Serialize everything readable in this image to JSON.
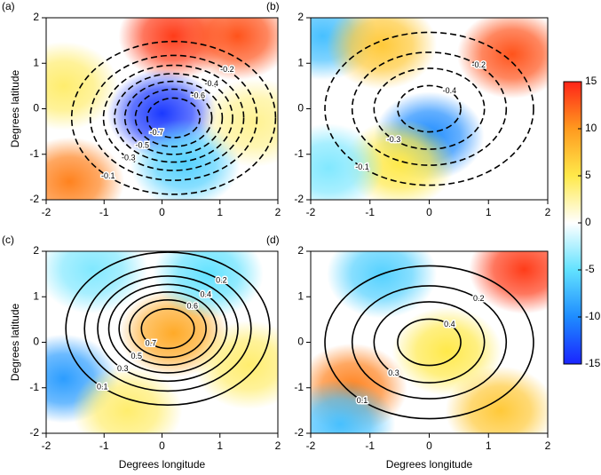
{
  "chart_data": [
    {
      "type": "contour",
      "title": "(a)",
      "ylabel": "Degrees latitude",
      "xlim": [
        -2,
        2
      ],
      "ylim": [
        -2,
        2
      ],
      "xticks": [
        -2,
        -1,
        0,
        1,
        2
      ],
      "yticks": [
        -2,
        -1,
        0,
        1,
        2
      ],
      "contour_center": [
        0.2,
        -0.2
      ],
      "contour_levels": [
        -0.1,
        -0.2,
        -0.3,
        -0.4,
        -0.5,
        -0.6,
        -0.7
      ],
      "hotspots": [
        {
          "x": 0.2,
          "y": 1.6,
          "value": 14
        },
        {
          "x": 1.3,
          "y": 1.6,
          "value": 13
        },
        {
          "x": -1.6,
          "y": -1.6,
          "value": 11
        },
        {
          "x": 0,
          "y": -0.1,
          "value": -14
        },
        {
          "x": 0.4,
          "y": -1.2,
          "value": -6
        },
        {
          "x": -1.7,
          "y": 0.5,
          "value": 4
        },
        {
          "x": 1.6,
          "y": -0.3,
          "value": 3
        }
      ]
    },
    {
      "type": "contour",
      "title": "(b)",
      "xlim": [
        -2,
        2
      ],
      "ylim": [
        -2,
        2
      ],
      "xticks": [
        -2,
        -1,
        0,
        1,
        2
      ],
      "yticks": [
        -2,
        -1,
        0,
        1,
        2
      ],
      "contour_center": [
        0,
        0
      ],
      "contour_levels": [
        -0.1,
        -0.2,
        -0.3,
        -0.4
      ],
      "hotspots": [
        {
          "x": 1.4,
          "y": 1.2,
          "value": 13
        },
        {
          "x": -1.8,
          "y": 1.6,
          "value": -7
        },
        {
          "x": 0,
          "y": -0.6,
          "value": -10
        },
        {
          "x": -0.8,
          "y": 1.4,
          "value": 7
        },
        {
          "x": -0.5,
          "y": -1.2,
          "value": 5
        },
        {
          "x": -1.7,
          "y": -1.3,
          "value": -4
        }
      ]
    },
    {
      "type": "contour",
      "title": "(c)",
      "ylabel": "Degrees latitude",
      "xlabel": "Degrees longitude",
      "xlim": [
        -2,
        2
      ],
      "ylim": [
        -2,
        2
      ],
      "xticks": [
        -2,
        -1,
        0,
        1,
        2
      ],
      "yticks": [
        -2,
        -1,
        0,
        1,
        2
      ],
      "contour_center": [
        0.1,
        0.3
      ],
      "contour_levels": [
        0.1,
        0.2,
        0.3,
        0.4,
        0.5,
        0.6,
        0.7
      ],
      "hotspots": [
        {
          "x": 0.2,
          "y": 0.2,
          "value": 9
        },
        {
          "x": -1.7,
          "y": -0.8,
          "value": -9
        },
        {
          "x": -1.2,
          "y": 1.6,
          "value": -4
        },
        {
          "x": 0.8,
          "y": 1.5,
          "value": -5
        },
        {
          "x": 1.5,
          "y": -0.5,
          "value": 4
        },
        {
          "x": -0.6,
          "y": -1.5,
          "value": 4
        }
      ]
    },
    {
      "type": "contour",
      "title": "(d)",
      "xlabel": "Degrees longitude",
      "xlim": [
        -2,
        2
      ],
      "ylim": [
        -2,
        2
      ],
      "xticks": [
        -2,
        -1,
        0,
        1,
        2
      ],
      "yticks": [
        -2,
        -1,
        0,
        1,
        2
      ],
      "contour_center": [
        0,
        0
      ],
      "contour_levels": [
        0.1,
        0.2,
        0.3,
        0.4
      ],
      "hotspots": [
        {
          "x": 1.6,
          "y": 1.6,
          "value": 14
        },
        {
          "x": -1.3,
          "y": -1.0,
          "value": 11
        },
        {
          "x": -0.8,
          "y": 1.5,
          "value": -6
        },
        {
          "x": -1.5,
          "y": -1.8,
          "value": -7
        },
        {
          "x": 1.2,
          "y": -1.5,
          "value": 7
        },
        {
          "x": 0.3,
          "y": -0.2,
          "value": 5
        }
      ]
    },
    {
      "type": "colorbar",
      "ylim": [
        -15,
        15
      ],
      "yticks": [
        15,
        10,
        5,
        0,
        -5,
        -10,
        -15
      ],
      "colors": [
        "#1a24ff",
        "#1e8cff",
        "#62e2ff",
        "#ffffff",
        "#ffe94a",
        "#ff9a1f",
        "#ff2418"
      ]
    }
  ]
}
